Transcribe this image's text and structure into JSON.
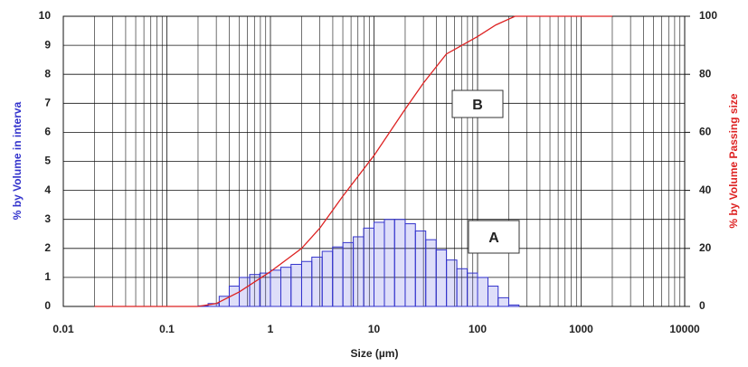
{
  "chart_data": {
    "type": "histogram",
    "x_label": "Size (µm)",
    "y_label": "% by Volume in interva",
    "y2_label": "% by Volume Passing size",
    "xscale": "log",
    "xlim": [
      0.01,
      10000
    ],
    "xticks": [
      0.01,
      0.1,
      1,
      10,
      100,
      1000,
      10000
    ],
    "ylim": [
      0,
      10
    ],
    "yticks": [
      0,
      1,
      2,
      3,
      4,
      5,
      6,
      7,
      8,
      9,
      10
    ],
    "y2lim": [
      0,
      100
    ],
    "y2ticks": [
      0,
      20,
      40,
      60,
      80,
      100
    ],
    "grid": true,
    "annotations": [
      "A",
      "B"
    ],
    "bins": [
      0.2,
      0.25,
      0.32,
      0.4,
      0.5,
      0.63,
      0.79,
      1,
      1.26,
      1.58,
      2,
      2.51,
      3.16,
      3.98,
      5.01,
      6.31,
      7.94,
      10,
      12.6,
      15.8,
      20,
      25.1,
      31.6,
      39.8,
      50.1,
      63.1,
      79.4,
      100,
      126,
      158,
      200,
      251
    ],
    "series": [
      {
        "type": "histogram",
        "color": "#3333cc",
        "values": [
          0.02,
          0.1,
          0.35,
          0.7,
          1.0,
          1.1,
          1.15,
          1.25,
          1.35,
          1.45,
          1.55,
          1.7,
          1.9,
          2.05,
          2.2,
          2.4,
          2.7,
          2.9,
          3.0,
          3.0,
          2.85,
          2.6,
          2.3,
          1.95,
          1.6,
          1.3,
          1.15,
          1.0,
          0.7,
          0.3,
          0.05
        ]
      },
      {
        "type": "line",
        "axis": "y2",
        "color": "#dd2222",
        "x": [
          0.02,
          0.2,
          0.3,
          0.5,
          1,
          2,
          3,
          5,
          10,
          20,
          30,
          50,
          100,
          150,
          230,
          2000
        ],
        "values": [
          0,
          0,
          1,
          5,
          12,
          20,
          27,
          38,
          52,
          68,
          77,
          87,
          93,
          97,
          100,
          100
        ]
      }
    ]
  }
}
